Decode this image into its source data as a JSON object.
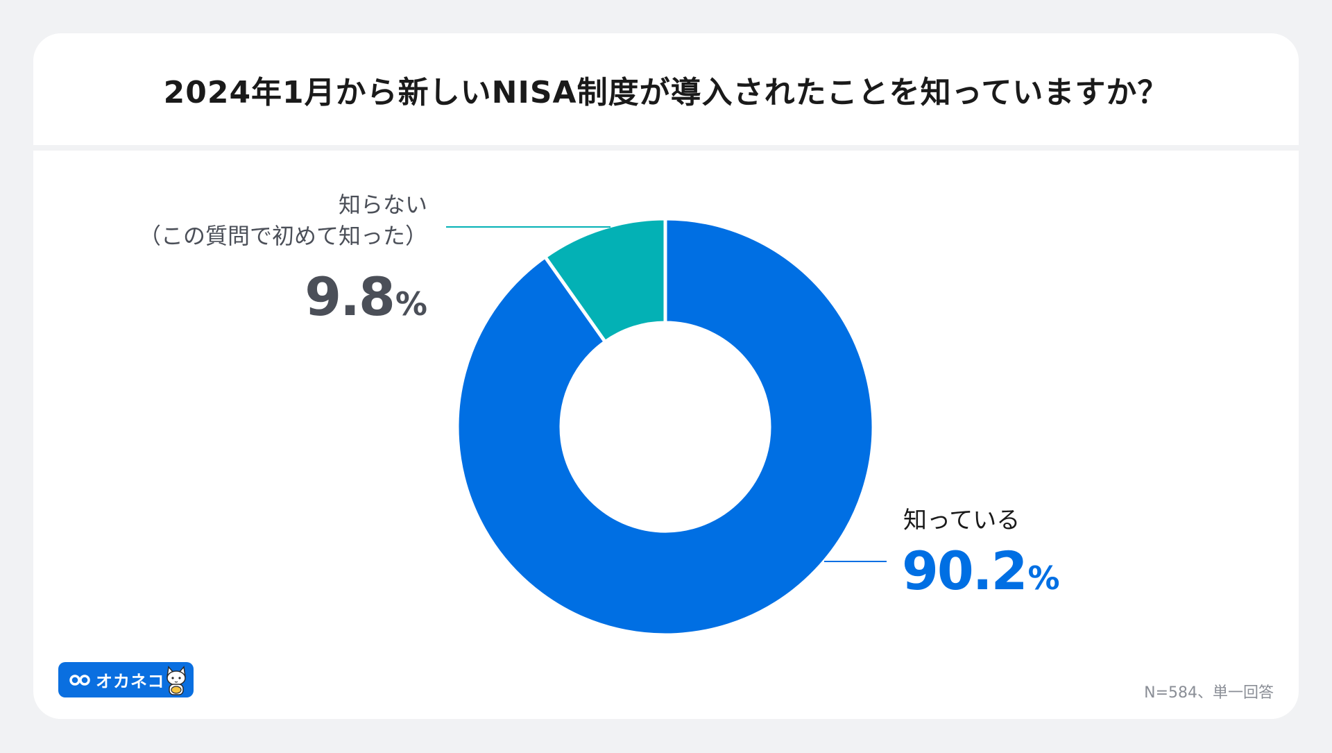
{
  "title": "2024年1月から新しいNISA制度が導入されたことを知っていますか？",
  "chart_data": {
    "type": "pie",
    "style": "donut",
    "title": "2024年1月から新しいNISA制度が導入されたことを知っていますか？",
    "slices": [
      {
        "label": "知っている",
        "value": 90.2,
        "color": "#006fe3"
      },
      {
        "label_line1": "知らない",
        "label_line2": "（この質問で初めて知った）",
        "label": "知らない（この質問で初めて知った）",
        "value": 9.8,
        "color": "#03b1b5"
      }
    ],
    "unit": "%",
    "start": "top",
    "direction": "clockwise"
  },
  "labels": {
    "known": {
      "name": "知っている",
      "value": "90.2",
      "unit": "%"
    },
    "unknown": {
      "name_line1": "知らない",
      "name_line2": "（この質問で初めて知った）",
      "value": "9.8",
      "unit": "%"
    }
  },
  "logo": {
    "text": "オカネコ"
  },
  "footnote": "N=584、単一回答"
}
